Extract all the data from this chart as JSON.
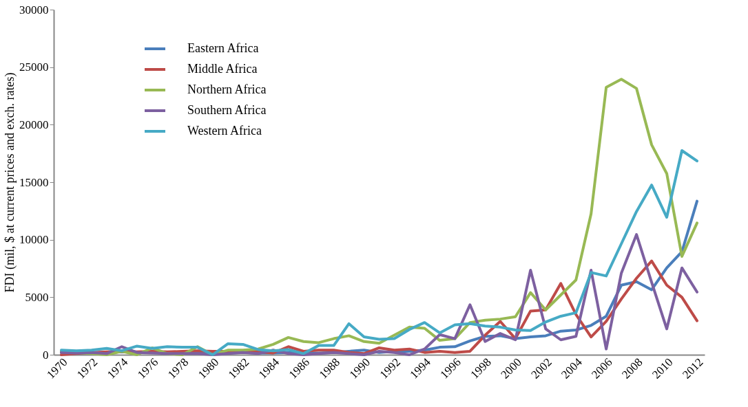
{
  "chart_data": {
    "type": "line",
    "ylabel": "FDI  (mil, $ at current prices and exch. rates)",
    "categories": [
      "1970",
      null,
      "1972",
      null,
      "1974",
      null,
      "1976",
      null,
      "1978",
      null,
      "1980",
      null,
      "1982",
      null,
      "1984",
      null,
      "1986",
      null,
      "1988",
      null,
      "1990",
      null,
      "1992",
      null,
      "1994",
      null,
      "1996",
      null,
      "1998",
      null,
      "2000",
      null,
      "2002",
      null,
      "2004",
      null,
      "2006",
      null,
      "2008",
      null,
      "2010",
      null,
      "2012"
    ],
    "ylim": [
      0,
      30000
    ],
    "yticks": [
      0,
      5000,
      10000,
      15000,
      20000,
      25000,
      30000
    ],
    "grid": false,
    "legend": "top left",
    "line_style": "solid",
    "marker": "none",
    "series": [
      {
        "name": "Eastern Africa",
        "color": "#4a7ebb",
        "values": [
          200,
          150,
          150,
          200,
          250,
          200,
          200,
          150,
          150,
          200,
          100,
          150,
          200,
          150,
          150,
          200,
          150,
          150,
          200,
          300,
          400,
          200,
          300,
          300,
          400,
          650,
          700,
          1200,
          1600,
          1650,
          1400,
          1550,
          1650,
          2050,
          2150,
          2550,
          3350,
          6050,
          6350,
          5650,
          7550,
          8950,
          13350
        ]
      },
      {
        "name": "Middle Africa",
        "color": "#be4b48",
        "values": [
          0,
          100,
          200,
          250,
          300,
          250,
          300,
          250,
          300,
          350,
          300,
          300,
          350,
          250,
          150,
          700,
          300,
          400,
          400,
          200,
          100,
          600,
          400,
          500,
          200,
          300,
          200,
          300,
          1700,
          2900,
          1400,
          3800,
          3900,
          6200,
          3500,
          1550,
          2900,
          4850,
          6650,
          8150,
          6050,
          5000,
          2950
        ]
      },
      {
        "name": "Northern Africa",
        "color": "#98b954",
        "values": [
          300,
          200,
          100,
          0,
          300,
          0,
          600,
          100,
          0,
          700,
          0,
          400,
          400,
          500,
          900,
          1500,
          1150,
          1050,
          1400,
          1650,
          1150,
          1000,
          1700,
          2400,
          2300,
          1250,
          1400,
          2800,
          3000,
          3100,
          3300,
          5400,
          3900,
          5200,
          6500,
          12250,
          23250,
          23950,
          23150,
          18250,
          15750,
          8550,
          11450
        ]
      },
      {
        "name": "Southern Africa",
        "color": "#7d60a0",
        "values": [
          200,
          150,
          200,
          100,
          700,
          200,
          150,
          100,
          100,
          100,
          0,
          100,
          200,
          100,
          400,
          100,
          0,
          100,
          200,
          100,
          0,
          300,
          200,
          0,
          500,
          1750,
          1400,
          4350,
          1150,
          1850,
          1300,
          7350,
          2250,
          1300,
          1600,
          7350,
          500,
          7100,
          10450,
          6300,
          2250,
          7550,
          5450
        ]
      },
      {
        "name": "Western Africa",
        "color": "#46aac5",
        "values": [
          400,
          350,
          400,
          550,
          350,
          750,
          550,
          700,
          650,
          650,
          0,
          950,
          900,
          450,
          350,
          450,
          100,
          800,
          800,
          2700,
          1550,
          1350,
          1400,
          2200,
          2800,
          1900,
          2600,
          2700,
          2500,
          2400,
          2150,
          2100,
          2850,
          3350,
          3650,
          7150,
          6850,
          9650,
          12450,
          14750,
          11950,
          17750,
          16850
        ]
      }
    ]
  }
}
